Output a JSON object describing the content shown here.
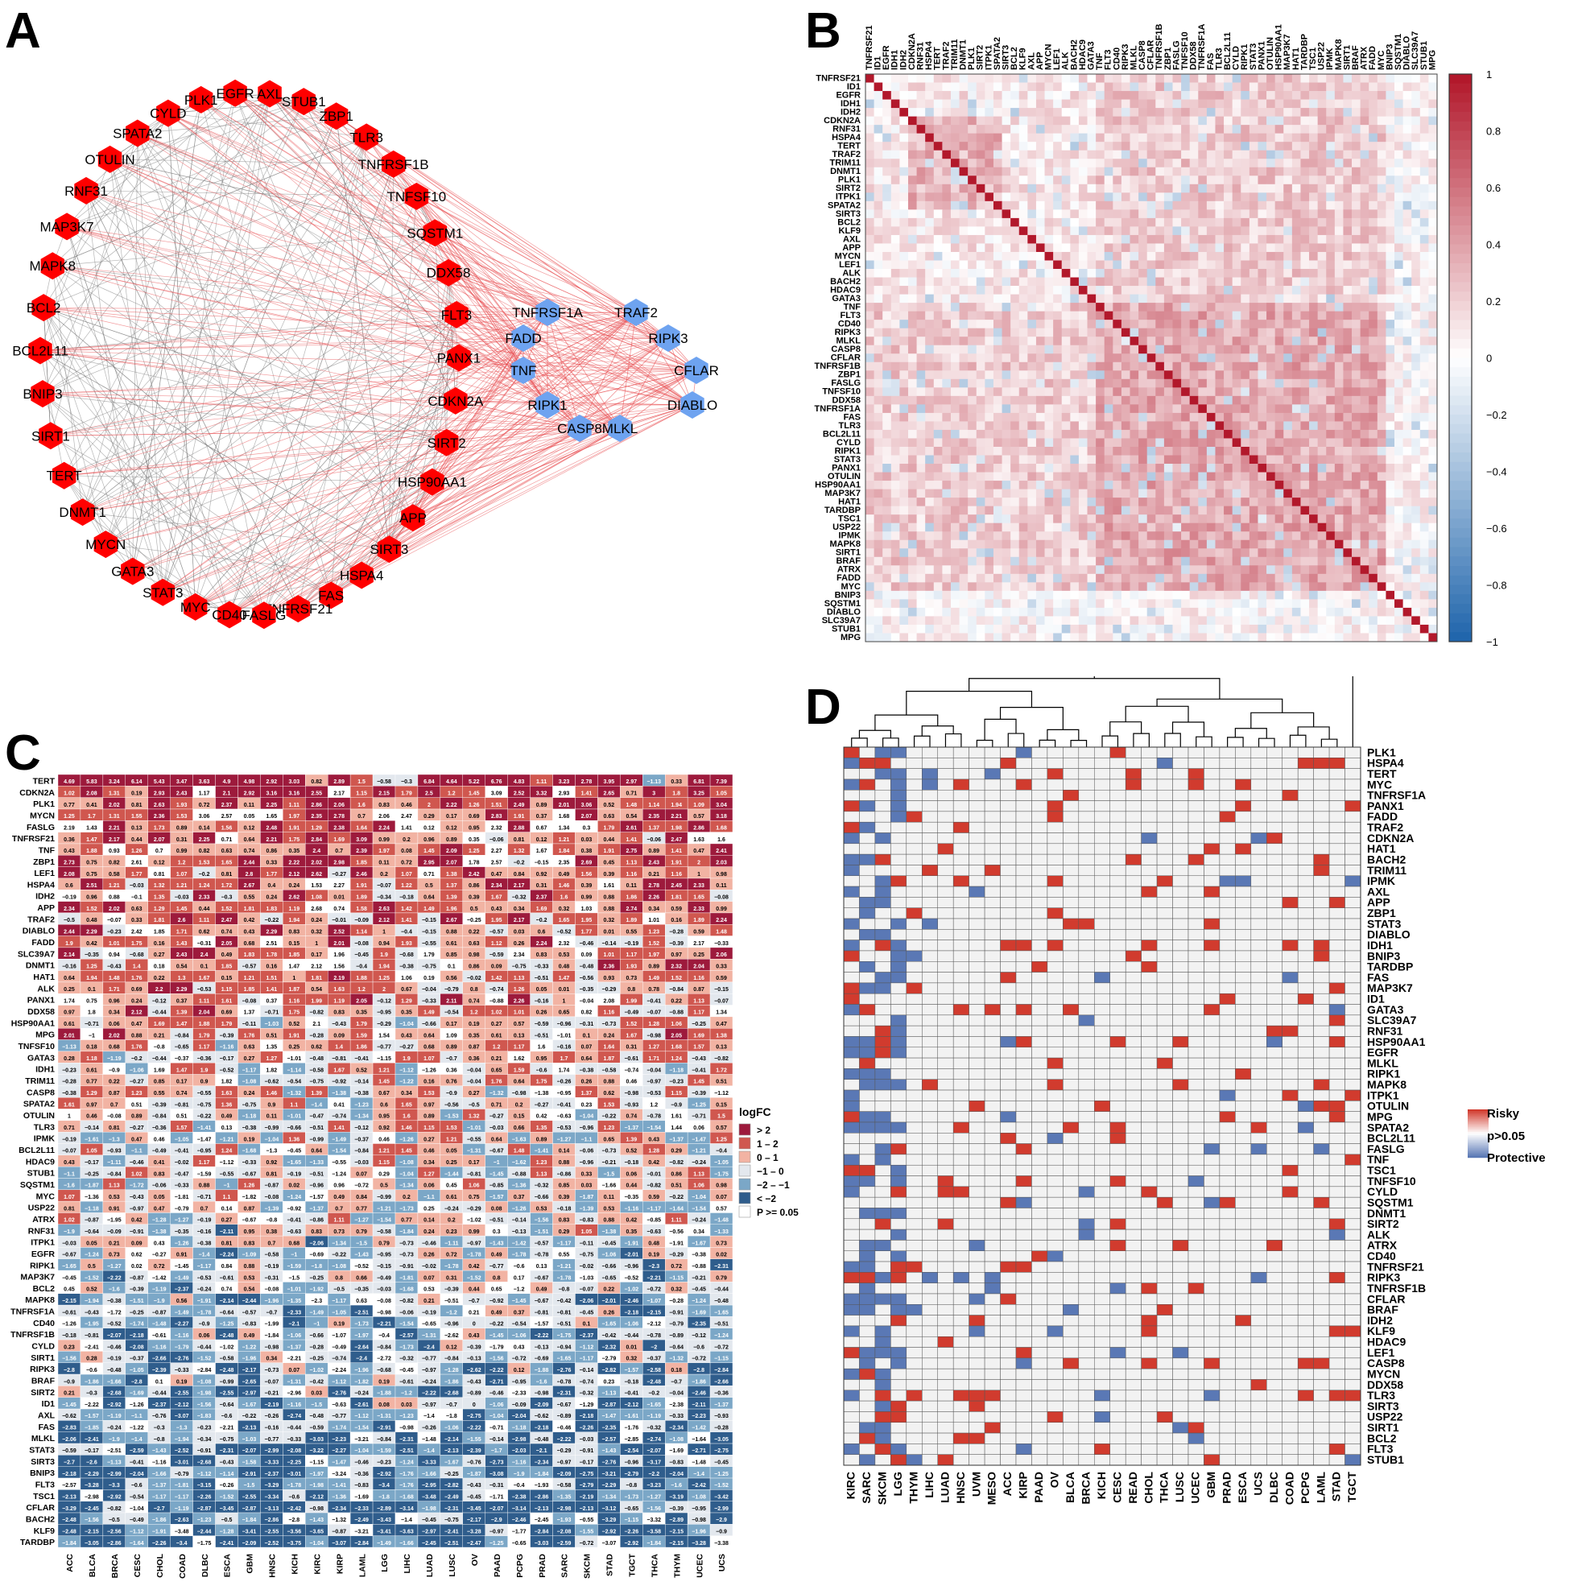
{
  "panels": {
    "a": "A",
    "b": "B",
    "c": "C",
    "d": "D"
  },
  "network": {
    "red_nodes": [
      "STUB1",
      "ZBP1",
      "TLR3",
      "TNFRSF1B",
      "TNFSF10",
      "SQSTM1",
      "DDX58",
      "FLT3",
      "PANX1",
      "CDKN2A",
      "SIRT2",
      "HSP90AA1",
      "APP",
      "SIRT3",
      "HSPA4",
      "FAS",
      "TNFRSF21",
      "FASLG",
      "CD40",
      "MYC",
      "STAT3",
      "GATA3",
      "MYCN",
      "DNMT1",
      "TERT",
      "SIRT1",
      "BNIP3",
      "BCL2L11",
      "BCL2",
      "MAPK8",
      "MAP3K7",
      "RNF31",
      "OTULIN",
      "SPATA2",
      "CYLD",
      "PLK1",
      "EGFR",
      "AXL"
    ],
    "blue_nodes": [
      "TNFRSF1A",
      "TRAF2",
      "FADD",
      "RIPK3",
      "TNF",
      "CFLAR",
      "RIPK1",
      "DIABLO",
      "CASP8",
      "MLKL"
    ],
    "colors": {
      "red": "#ff0000",
      "blue": "#6ea3f0",
      "edge_red": "#e8474b",
      "edge_grey": "#7a7a7a"
    }
  },
  "corr": {
    "genes": [
      "TNFRSF21",
      "ID1",
      "EGFR",
      "IDH1",
      "IDH2",
      "CDKN2A",
      "RNF31",
      "HSPA4",
      "TERT",
      "TRAF2",
      "TRIM11",
      "DNMT1",
      "PLK1",
      "SIRT2",
      "ITPK1",
      "SPATA2",
      "SIRT3",
      "BCL2",
      "KLF9",
      "AXL",
      "APP",
      "MYCN",
      "LEF1",
      "ALK",
      "BACH2",
      "HDAC9",
      "GATA3",
      "TNF",
      "FLT3",
      "CD40",
      "RIPK3",
      "MLKL",
      "CASP8",
      "CFLAR",
      "TNFRSF1B",
      "ZBP1",
      "FASLG",
      "TNFSF10",
      "DDX58",
      "TNFRSF1A",
      "FAS",
      "TLR3",
      "BCL2L11",
      "CYLD",
      "RIPK1",
      "STAT3",
      "PANX1",
      "OTULIN",
      "HSP90AA1",
      "MAP3K7",
      "HAT1",
      "TARDBP",
      "TSC1",
      "USP22",
      "IPMK",
      "MAPK8",
      "SIRT1",
      "BRAF",
      "ATRX",
      "FADD",
      "MYC",
      "BNIP3",
      "SQSTM1",
      "DIABLO",
      "SLC39A7",
      "STUB1",
      "MPG"
    ],
    "colorbar_ticks": [
      "1",
      "0.8",
      "0.6",
      "0.4",
      "0.2",
      "0",
      "−0.2",
      "−0.4",
      "−0.6",
      "−0.8",
      "−1"
    ],
    "colors": {
      "pos": "#b2182b",
      "neg": "#2166ac",
      "mid": "#ffffff"
    }
  },
  "logfc": {
    "genes": [
      "TERT",
      "CDKN2A",
      "PLK1",
      "MYCN",
      "FASLG",
      "TNFRSF21",
      "TNF",
      "ZBP1",
      "LEF1",
      "HSPA4",
      "IDH2",
      "APP",
      "TRAF2",
      "DIABLO",
      "FADD",
      "SLC39A7",
      "DNMT1",
      "HAT1",
      "ALK",
      "PANX1",
      "DDX58",
      "HSP90AA1",
      "MPG",
      "TNFSF10",
      "GATA3",
      "IDH1",
      "TRIM11",
      "CASP8",
      "SPATA2",
      "OTULIN",
      "TLR3",
      "IPMK",
      "BCL2L11",
      "HDAC9",
      "STUB1",
      "SQSTM1",
      "MYC",
      "USP22",
      "ATRX",
      "RNF31",
      "ITPK1",
      "EGFR",
      "RIPK1",
      "MAP3K7",
      "BCL2",
      "MAPK8",
      "TNFRSF1A",
      "CD40",
      "TNFRSF1B",
      "CYLD",
      "SIRT1",
      "RIPK3",
      "BRAF",
      "SIRT2",
      "ID1",
      "AXL",
      "FAS",
      "MLKL",
      "STAT3",
      "SIRT3",
      "BNIP3",
      "FLT3",
      "TSC1",
      "CFLAR",
      "BACH2",
      "KLF9",
      "TARDBP"
    ],
    "cancers": [
      "ACC",
      "BLCA",
      "BRCA",
      "CESC",
      "CHOL",
      "COAD",
      "DLBC",
      "ESCA",
      "GBM",
      "HNSC",
      "KICH",
      "KIRC",
      "KIRP",
      "LAML",
      "LGG",
      "LIHC",
      "LUAD",
      "LUSC",
      "OV",
      "PAAD",
      "PCPG",
      "PRAD",
      "SARC",
      "SKCM",
      "STAD",
      "TGCT",
      "THCA",
      "THYM",
      "UCEC",
      "UCS"
    ],
    "first_row_values": [
      "4.69",
      "5.83",
      "3.24",
      "6.14",
      "5.43",
      "3.47",
      "3.63",
      "4.9",
      "4.98",
      "2.92",
      "3.03",
      "0.82",
      "2.89",
      "1.5",
      "−0.58",
      "−0.3",
      "6.84",
      "4.64",
      "5.22",
      "6.76",
      "4.83",
      "1.11",
      "3.23",
      "2.78",
      "3.95",
      "2.97",
      "−1.13",
      "0.33",
      "6.81",
      "7.39"
    ],
    "legend": {
      "title": "logFC",
      "items": [
        {
          "label": "> 2",
          "color": "#9d1a3c"
        },
        {
          "label": "1 – 2",
          "color": "#d0574f"
        },
        {
          "label": "0 – 1",
          "color": "#f2b3a3"
        },
        {
          "label": "−1 – 0",
          "color": "#e3e8ee"
        },
        {
          "label": "−2 – −1",
          "color": "#7ba7c7"
        },
        {
          "label": "< −2",
          "color": "#2f5d8c"
        },
        {
          "label": "P >= 0.05",
          "color": "#ffffff"
        }
      ]
    }
  },
  "survival": {
    "genes": [
      "PLK1",
      "HSPA4",
      "TERT",
      "MYC",
      "TNFRSF1A",
      "PANX1",
      "FADD",
      "TRAF2",
      "CDKN2A",
      "HAT1",
      "BACH2",
      "TRIM11",
      "IPMK",
      "AXL",
      "APP",
      "ZBP1",
      "STAT3",
      "DIABLO",
      "IDH1",
      "BNIP3",
      "TARDBP",
      "FAS",
      "MAP3K7",
      "ID1",
      "GATA3",
      "SLC39A7",
      "RNF31",
      "HSP90AA1",
      "EGFR",
      "MLKL",
      "RIPK1",
      "MAPK8",
      "ITPK1",
      "OTULIN",
      "MPG",
      "SPATA2",
      "BCL2L11",
      "FASLG",
      "TNF",
      "TSC1",
      "TNFSF10",
      "CYLD",
      "SQSTM1",
      "DNMT1",
      "SIRT2",
      "ALK",
      "ATRX",
      "CD40",
      "TNFRSF21",
      "RIPK3",
      "TNFRSF1B",
      "CFLAR",
      "BRAF",
      "IDH2",
      "KLF9",
      "HDAC9",
      "LEF1",
      "CASP8",
      "MYCN",
      "DDX58",
      "TLR3",
      "SIRT3",
      "USP22",
      "SIRT1",
      "BCL2",
      "FLT3",
      "STUB1"
    ],
    "cancers": [
      "KIRC",
      "SARC",
      "SKCM",
      "LGG",
      "THYM",
      "LIHC",
      "LUAD",
      "HNSC",
      "UVM",
      "MESO",
      "ACC",
      "KIRP",
      "PAAD",
      "OV",
      "BLCA",
      "BRCA",
      "KICH",
      "CESC",
      "READ",
      "CHOL",
      "THCA",
      "LUSC",
      "UCEC",
      "GBM",
      "PRAD",
      "ESCA",
      "UCS",
      "DLBC",
      "COAD",
      "PCPG",
      "LAML",
      "STAD",
      "TGCT"
    ],
    "legend": {
      "risky": "Risky",
      "ns": "p>0.05",
      "protective": "Protective"
    },
    "colors": {
      "risky": "#d13b2e",
      "protective": "#5a78b5",
      "ns": "#f2f2f2"
    }
  }
}
